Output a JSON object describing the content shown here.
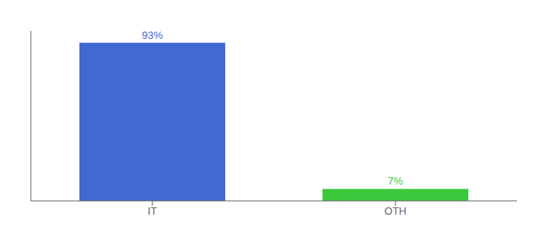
{
  "chart_data": {
    "type": "bar",
    "categories": [
      "IT",
      "OTH"
    ],
    "values": [
      93,
      7
    ],
    "value_labels": [
      "93%",
      "7%"
    ],
    "colors": [
      "#4169d4",
      "#3cc83c"
    ],
    "ylim": [
      0,
      100
    ],
    "grid": false,
    "data_labels": true,
    "tick_labels": "x"
  }
}
